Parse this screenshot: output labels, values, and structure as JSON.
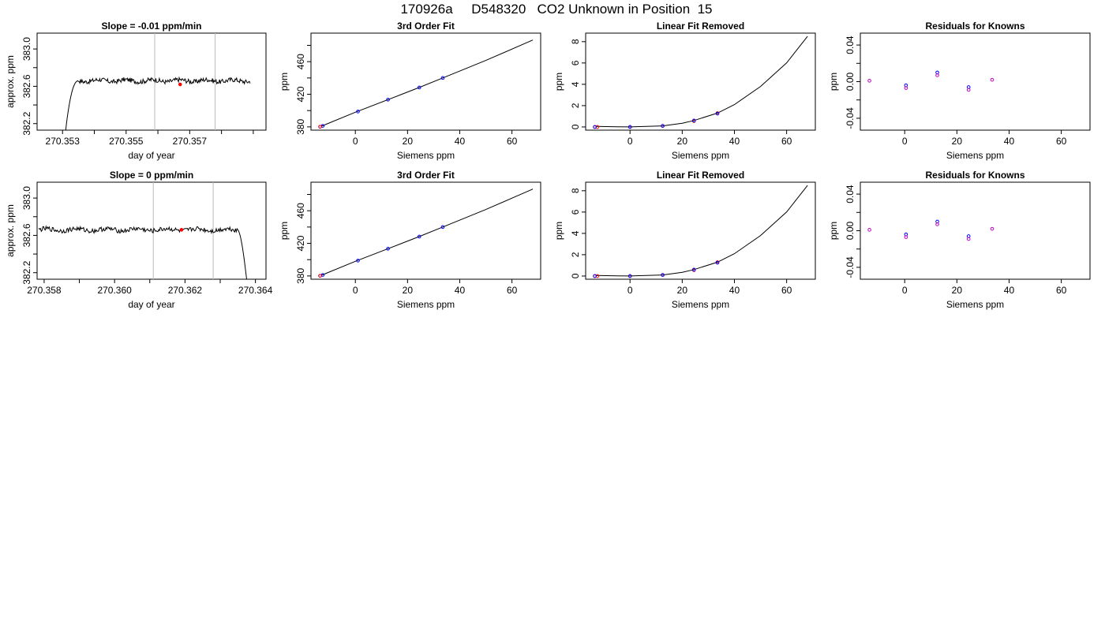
{
  "figure": {
    "title": "170926a     D548320   CO2 Unknown in Position  15"
  },
  "colors": {
    "axis": "#000000",
    "line": "#000000",
    "marker_fill": "#ff0000",
    "point_blue": "#0000ff",
    "point_red": "#ff0000",
    "point_magenta": "#c000c0",
    "vline": "#bbbbbb"
  },
  "chart_data": [
    {
      "type": "line",
      "id": "r1-timeseries",
      "title": "Slope =  -0.01  ppm/min",
      "xlabel": "day of year",
      "ylabel": "approx. ppm",
      "xlim": [
        270.3522,
        270.3594
      ],
      "ylim": [
        382.13,
        383.17
      ],
      "xticks": [
        270.353,
        270.354,
        270.355,
        270.356,
        270.357,
        270.358,
        270.359
      ],
      "xticklabels": [
        "270.353",
        "",
        "270.355",
        "",
        "270.357",
        "",
        ""
      ],
      "yticks": [
        382.2,
        382.6,
        383.0
      ],
      "yticklabels": [
        "382.2",
        "382.6",
        "383.0"
      ],
      "yminor": [
        382.4,
        382.8
      ],
      "vlines": [
        270.3559,
        270.3578
      ],
      "marker": {
        "x": 270.3567,
        "y": 382.62
      },
      "series": [
        {
          "shape": "rise",
          "x_start": 270.3531,
          "x_end": 270.3589,
          "x_rise_end": 270.3535,
          "y_base": 382.13,
          "y_plateau": 382.66
        }
      ]
    },
    {
      "type": "line",
      "id": "r1-fit",
      "title": "3rd Order Fit",
      "xlabel": "Siemens ppm",
      "ylabel": "ppm",
      "xlim": [
        -17,
        71
      ],
      "ylim": [
        376,
        495
      ],
      "xticks": [
        0,
        20,
        40,
        60
      ],
      "xticklabels": [
        "0",
        "20",
        "40",
        "60"
      ],
      "yticks": [
        380,
        420,
        460
      ],
      "yticklabels": [
        "380",
        "420",
        "460"
      ],
      "yminor": [
        400,
        440,
        480
      ],
      "curve": {
        "x": [
          -13,
          0,
          12.5,
          24.5,
          33.5,
          50,
          68
        ],
        "y": [
          380.8,
          398.0,
          413.4,
          428.3,
          440.0,
          461.5,
          486.6
        ]
      },
      "points": {
        "x": [
          -13.5,
          -12.5,
          1,
          12.5,
          24.5,
          33.5
        ],
        "y": [
          380.2,
          381.2,
          398.8,
          413.4,
          428.3,
          440.0
        ]
      }
    },
    {
      "type": "line",
      "id": "r1-linfit",
      "title": "Linear Fit Removed",
      "xlabel": "Siemens ppm",
      "ylabel": "ppm",
      "xlim": [
        -17,
        71
      ],
      "ylim": [
        -0.3,
        8.8
      ],
      "xticks": [
        0,
        20,
        40,
        60
      ],
      "xticklabels": [
        "0",
        "20",
        "40",
        "60"
      ],
      "yticks": [
        0,
        2,
        4,
        6,
        8
      ],
      "yticklabels": [
        "0",
        "2",
        "4",
        "6",
        "8"
      ],
      "curve": {
        "x": [
          -13,
          -5,
          0,
          5,
          12.5,
          20,
          24.5,
          33.5,
          40,
          50,
          60,
          68
        ],
        "y": [
          0.05,
          0.02,
          0.0,
          0.04,
          0.1,
          0.35,
          0.6,
          1.3,
          2.1,
          3.8,
          6.0,
          8.5
        ]
      },
      "points_red": {
        "x": [
          -13.5,
          -12.5,
          0,
          12.5,
          24.5,
          33.5
        ],
        "y": [
          0.0,
          0.0,
          0.0,
          0.1,
          0.55,
          1.3
        ]
      },
      "points_blue": {
        "x": [
          -13.5,
          0,
          12.5,
          24.5,
          33.5
        ],
        "y": [
          0.0,
          0.0,
          0.1,
          0.6,
          1.25
        ]
      }
    },
    {
      "type": "scatter",
      "id": "r1-resid",
      "title": "Residuals for Knowns",
      "xlabel": "Siemens ppm",
      "ylabel": "ppm",
      "xlim": [
        -17,
        71
      ],
      "ylim": [
        -0.053,
        0.053
      ],
      "xticks": [
        0,
        20,
        40,
        60
      ],
      "xticklabels": [
        "0",
        "20",
        "40",
        "60"
      ],
      "yticks": [
        -0.04,
        0.0,
        0.04
      ],
      "yticklabels": [
        "-0.04",
        "0.00",
        "0.04"
      ],
      "yminor": [
        -0.02,
        0.02
      ],
      "points_magenta": {
        "x": [
          -13.5,
          0.5,
          12.5,
          24.5,
          33.5
        ],
        "y": [
          0.001,
          -0.007,
          0.007,
          -0.009,
          0.002
        ]
      },
      "points_blue": {
        "x": [
          0.5,
          12.5,
          24.5
        ],
        "y": [
          -0.004,
          0.01,
          -0.006
        ]
      }
    },
    {
      "type": "line",
      "id": "r2-timeseries",
      "title": "Slope =  0  ppm/min",
      "xlabel": "day of year",
      "ylabel": "approx. ppm",
      "xlim": [
        270.3578,
        270.3643
      ],
      "ylim": [
        382.13,
        383.17
      ],
      "xticks": [
        270.358,
        270.359,
        270.36,
        270.361,
        270.362,
        270.363,
        270.364
      ],
      "xticklabels": [
        "270.358",
        "",
        "270.360",
        "",
        "270.362",
        "",
        "270.364"
      ],
      "yticks": [
        382.2,
        382.6,
        383.0
      ],
      "yticklabels": [
        "382.2",
        "382.6",
        "383.0"
      ],
      "yminor": [
        382.4,
        382.8
      ],
      "vlines": [
        270.3611,
        270.3628
      ],
      "marker": {
        "x": 270.3619,
        "y": 382.66
      },
      "series": [
        {
          "shape": "fall",
          "x_start": 270.35785,
          "x_end": 270.36375,
          "x_fall_start": 270.3635,
          "y_base": 382.13,
          "y_plateau": 382.66
        }
      ]
    },
    {
      "type": "line",
      "id": "r2-fit",
      "title": "3rd Order Fit",
      "xlabel": "Siemens ppm",
      "ylabel": "ppm",
      "xlim": [
        -17,
        71
      ],
      "ylim": [
        376,
        495
      ],
      "xticks": [
        0,
        20,
        40,
        60
      ],
      "xticklabels": [
        "0",
        "20",
        "40",
        "60"
      ],
      "yticks": [
        380,
        420,
        460
      ],
      "yticklabels": [
        "380",
        "420",
        "460"
      ],
      "yminor": [
        400,
        440,
        480
      ],
      "curve": {
        "x": [
          -13,
          0,
          12.5,
          24.5,
          33.5,
          50,
          68
        ],
        "y": [
          380.8,
          398.0,
          413.4,
          428.3,
          440.0,
          461.5,
          486.6
        ]
      },
      "points": {
        "x": [
          -13.5,
          -12.5,
          1,
          12.5,
          24.5,
          33.5
        ],
        "y": [
          380.2,
          381.2,
          398.8,
          413.4,
          428.3,
          440.0
        ]
      }
    },
    {
      "type": "line",
      "id": "r2-linfit",
      "title": "Linear Fit Removed",
      "xlabel": "Siemens ppm",
      "ylabel": "ppm",
      "xlim": [
        -17,
        71
      ],
      "ylim": [
        -0.3,
        8.8
      ],
      "xticks": [
        0,
        20,
        40,
        60
      ],
      "xticklabels": [
        "0",
        "20",
        "40",
        "60"
      ],
      "yticks": [
        0,
        2,
        4,
        6,
        8
      ],
      "yticklabels": [
        "0",
        "2",
        "4",
        "6",
        "8"
      ],
      "curve": {
        "x": [
          -13,
          -5,
          0,
          5,
          12.5,
          20,
          24.5,
          33.5,
          40,
          50,
          60,
          68
        ],
        "y": [
          0.05,
          0.02,
          0.0,
          0.04,
          0.1,
          0.35,
          0.6,
          1.3,
          2.1,
          3.8,
          6.0,
          8.5
        ]
      },
      "points_red": {
        "x": [
          -13.5,
          -12.5,
          0,
          12.5,
          24.5,
          33.5
        ],
        "y": [
          0.0,
          0.0,
          0.0,
          0.1,
          0.55,
          1.3
        ]
      },
      "points_blue": {
        "x": [
          -13.5,
          0,
          12.5,
          24.5,
          33.5
        ],
        "y": [
          0.0,
          0.0,
          0.1,
          0.6,
          1.25
        ]
      }
    },
    {
      "type": "scatter",
      "id": "r2-resid",
      "title": "Residuals for Knowns",
      "xlabel": "Siemens ppm",
      "ylabel": "ppm",
      "xlim": [
        -17,
        71
      ],
      "ylim": [
        -0.053,
        0.053
      ],
      "xticks": [
        0,
        20,
        40,
        60
      ],
      "xticklabels": [
        "0",
        "20",
        "40",
        "60"
      ],
      "yticks": [
        -0.04,
        0.0,
        0.04
      ],
      "yticklabels": [
        "-0.04",
        "0.00",
        "0.04"
      ],
      "yminor": [
        -0.02,
        0.02
      ],
      "points_magenta": {
        "x": [
          -13.5,
          0.5,
          12.5,
          24.5,
          33.5
        ],
        "y": [
          0.001,
          -0.007,
          0.007,
          -0.009,
          0.002
        ]
      },
      "points_blue": {
        "x": [
          0.5,
          12.5,
          24.5
        ],
        "y": [
          -0.004,
          0.01,
          -0.006
        ]
      }
    }
  ]
}
